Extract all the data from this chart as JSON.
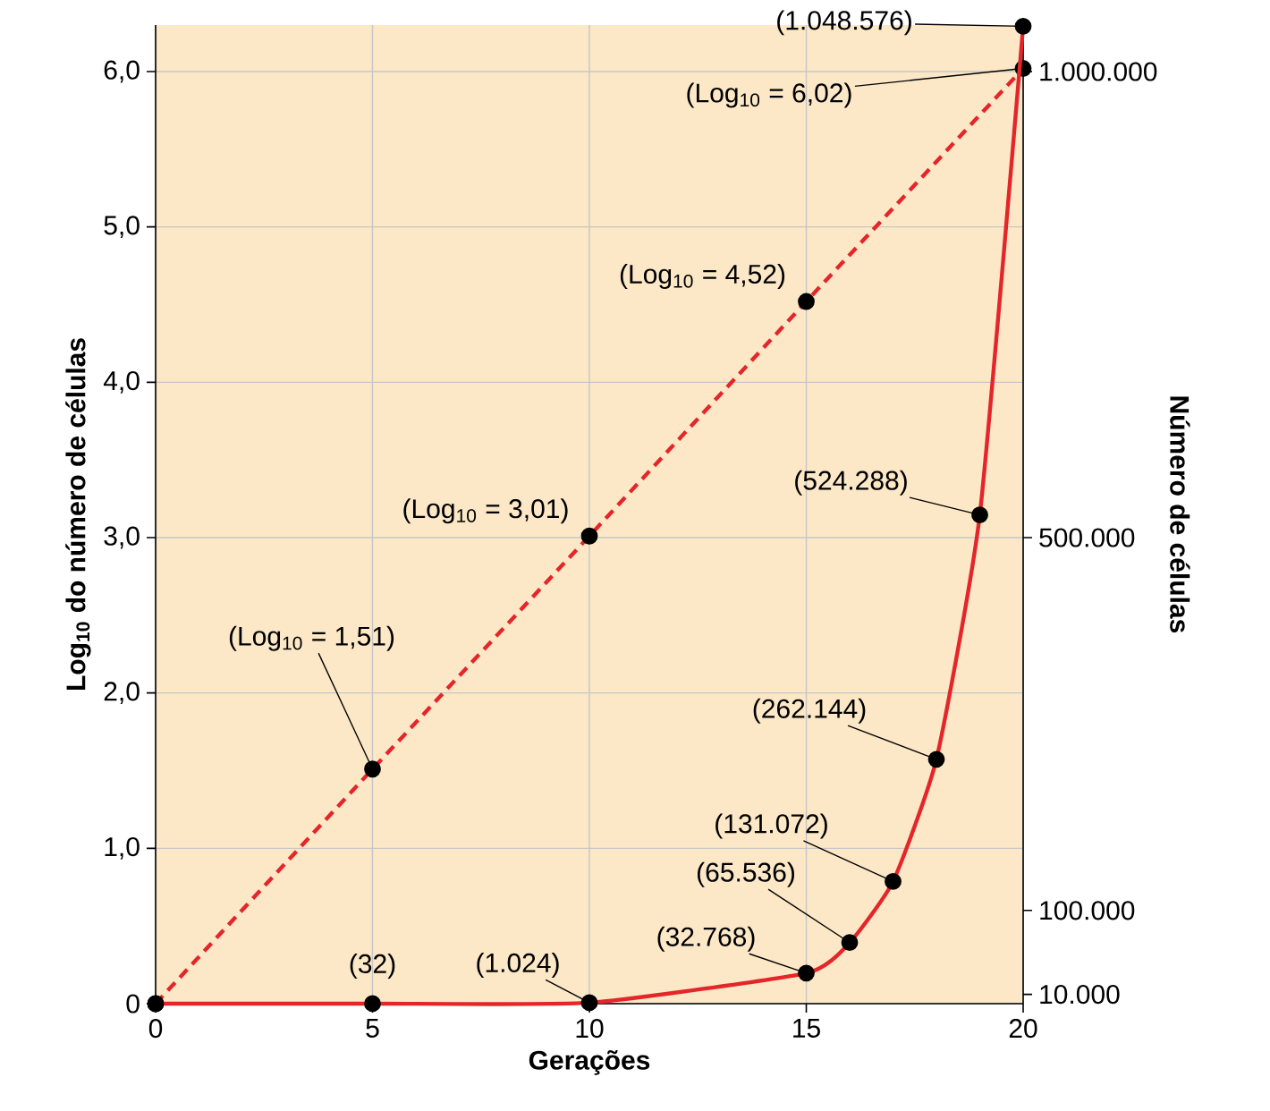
{
  "chart_data": {
    "type": "line",
    "xlabel": "Gerações",
    "ylabel": "Log$_{10}$ do número de células",
    "y2label": "Número de células",
    "xlim": [
      0,
      20
    ],
    "xticks": [
      0,
      5,
      10,
      15,
      20
    ],
    "ylim": [
      0,
      6.3
    ],
    "yticks": [
      0,
      {
        "value": 1,
        "label": "1,0"
      },
      {
        "value": 2,
        "label": "2,0"
      },
      {
        "value": 3,
        "label": "3,0"
      },
      {
        "value": 4,
        "label": "4,0"
      },
      {
        "value": 5,
        "label": "5,0"
      },
      {
        "value": 6,
        "label": "6,0"
      }
    ],
    "y2lim": [
      0,
      1050000
    ],
    "y2ticks": [
      {
        "value": 10000,
        "label": "10.000"
      },
      {
        "value": 100000,
        "label": "100.000"
      },
      {
        "value": 500000,
        "label": "500.000"
      },
      {
        "value": 1000000,
        "label": "1.000.000"
      }
    ],
    "grid": true,
    "series": [
      {
        "color": "#e4262a",
        "line_style": "dashed",
        "marker": "circle",
        "x": [
          0,
          5,
          10,
          15,
          20
        ],
        "values": [
          0,
          1.51,
          3.01,
          4.52,
          6.02
        ],
        "value_labels": [
          null,
          "(Log$_{10}$ = 1,51)",
          "(Log$_{10}$ = 3,01)",
          "(Log$_{10}$ = 4,52)",
          "(Log$_{10}$ = 6,02)"
        ]
      },
      {
        "color": "#e4262a",
        "line_style": "solid",
        "marker": "circle",
        "axis": "y2",
        "x": [
          0,
          5,
          10,
          15,
          16,
          17,
          18,
          19,
          20
        ],
        "values": [
          0,
          32,
          1024,
          32768,
          65536,
          131072,
          262144,
          524288,
          1048576
        ],
        "value_labels": [
          null,
          "(32)",
          "(1.024)",
          "(32.768)",
          "(65.536)",
          "(131.072)",
          "(262.144)",
          "(524.288)",
          "(1.048.576)"
        ]
      }
    ]
  }
}
